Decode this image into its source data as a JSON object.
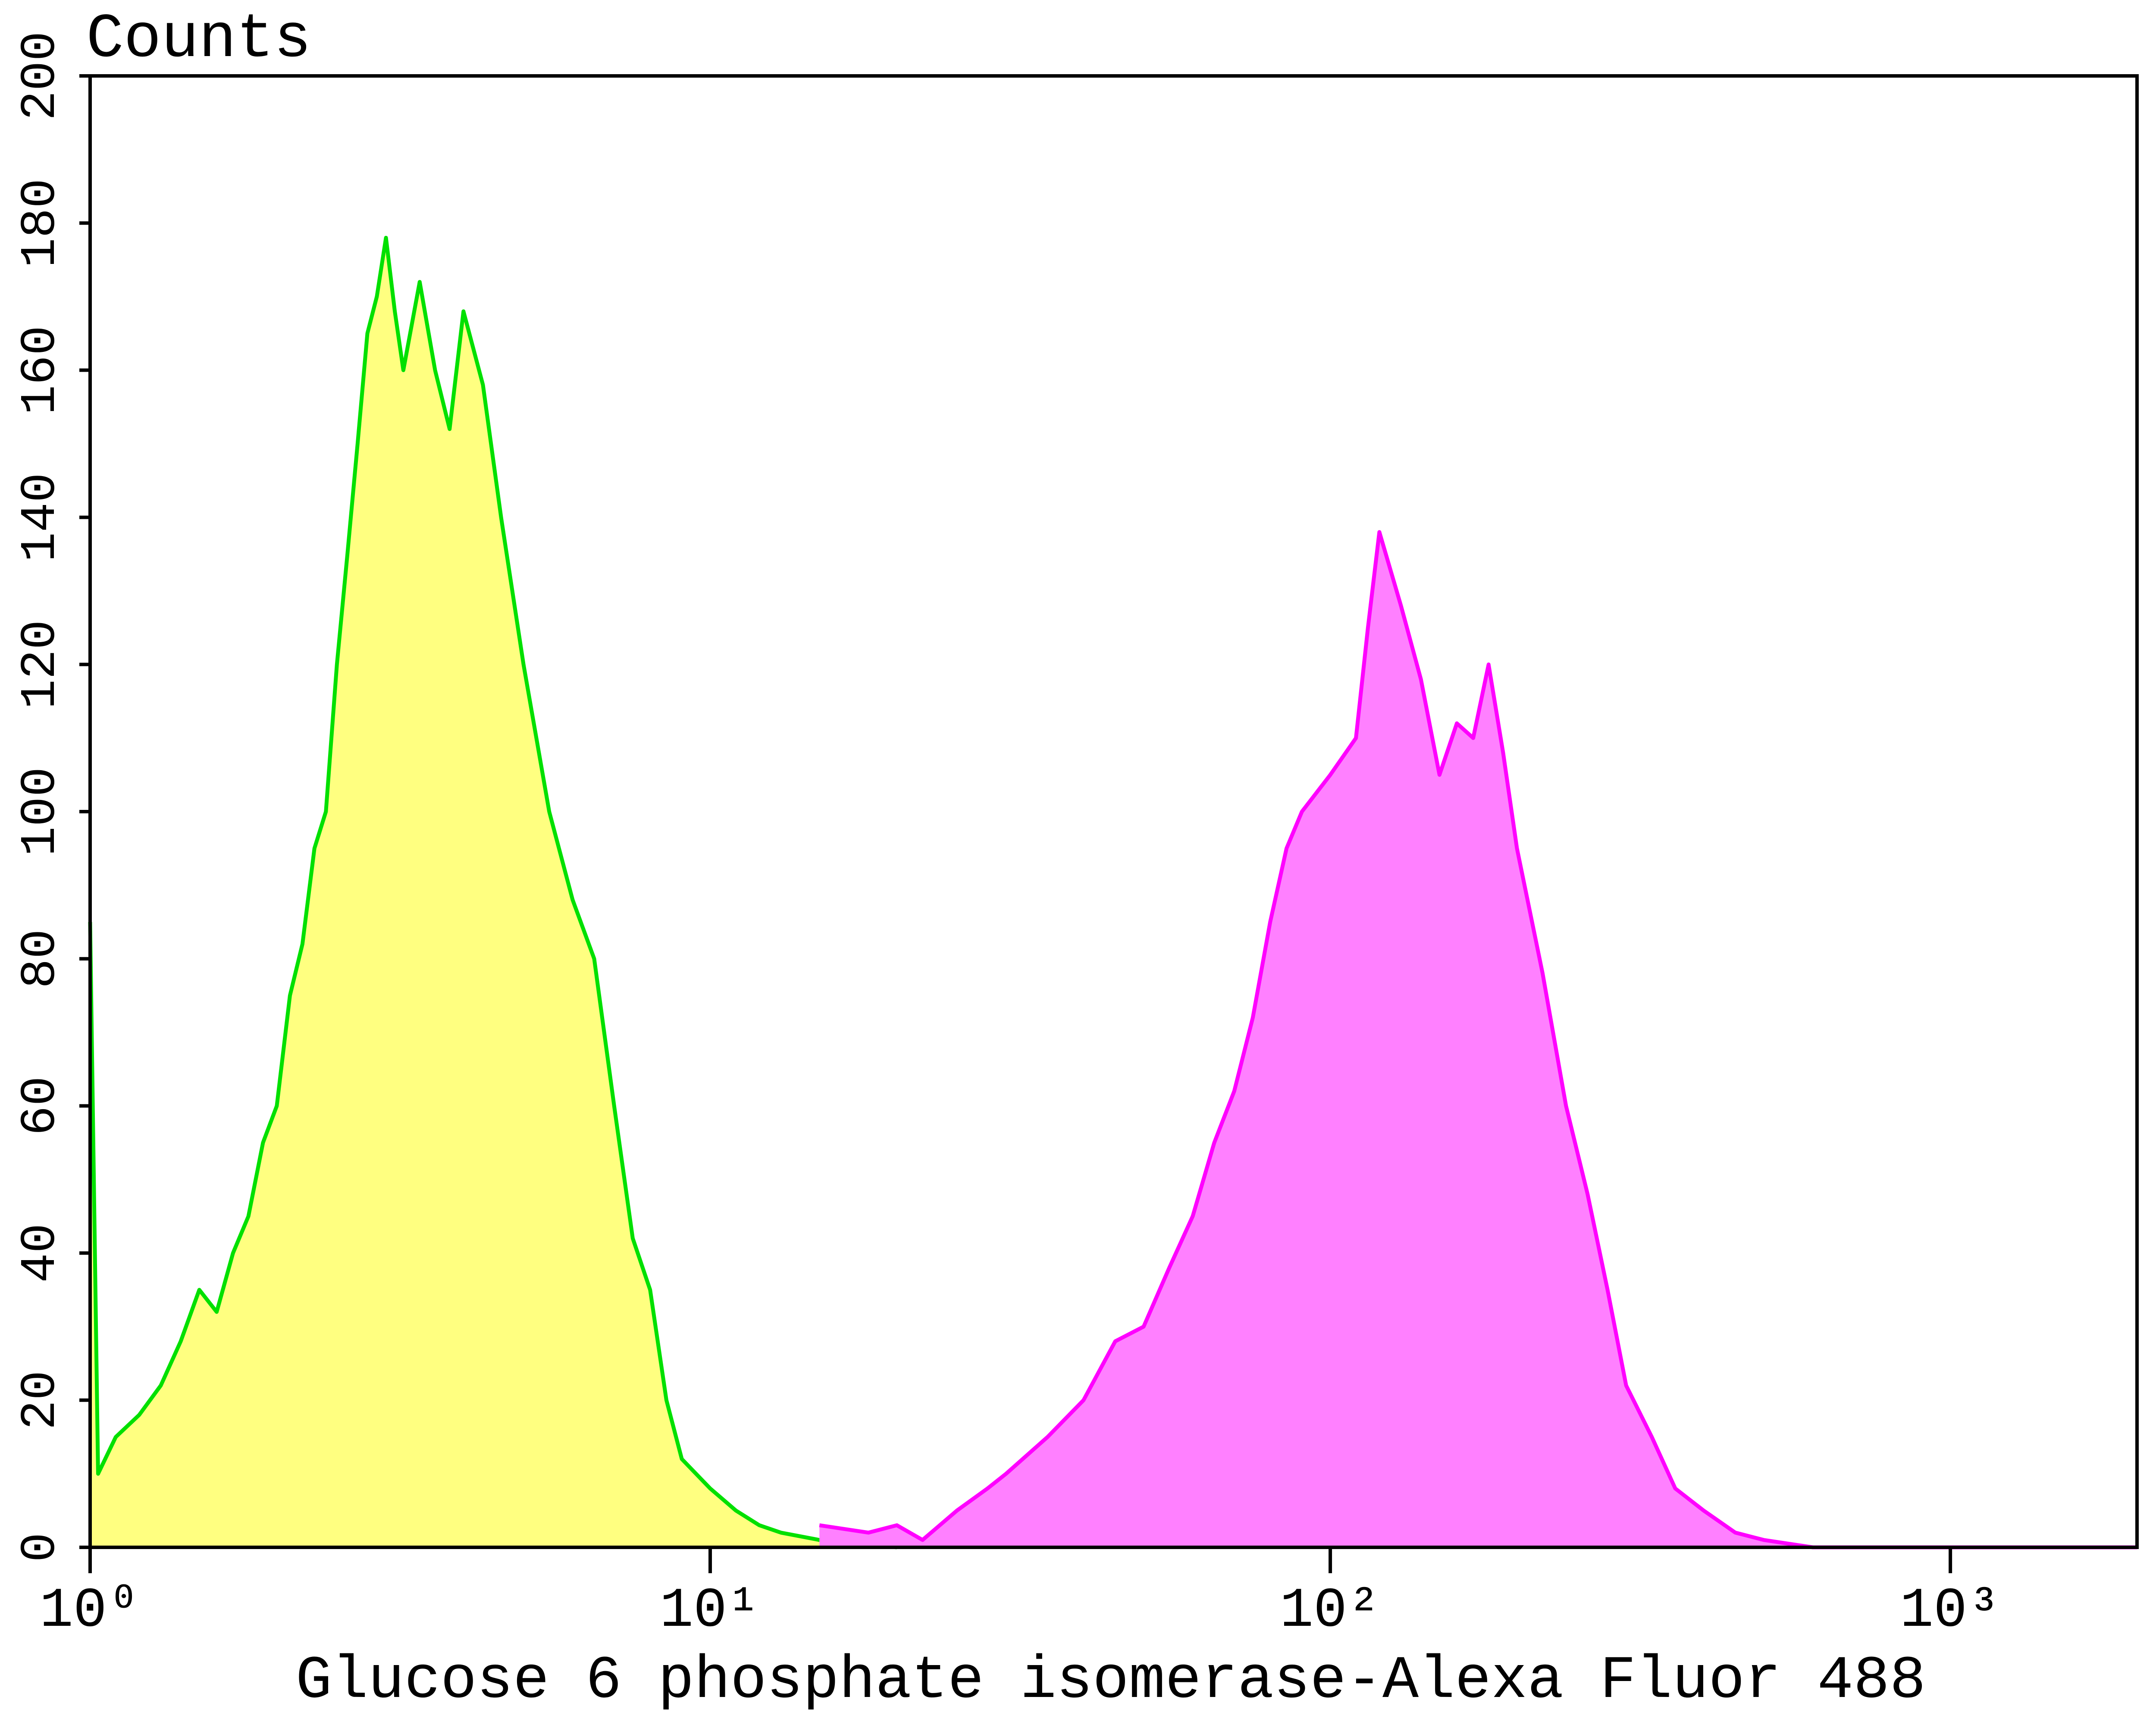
{
  "chart_data": {
    "type": "area",
    "title": "Counts",
    "x_label": "Glucose 6 phosphate isomerase-Alexa Fluor 488",
    "x_scale": "log",
    "xlim": [
      1,
      2000
    ],
    "ylim": [
      0,
      200
    ],
    "xticks": [
      {
        "value": 1,
        "label": "10⁰"
      },
      {
        "value": 10,
        "label": "10¹"
      },
      {
        "value": 100,
        "label": "10²"
      },
      {
        "value": 1000,
        "label": "10³"
      }
    ],
    "yticks": [
      0,
      20,
      40,
      60,
      80,
      100,
      120,
      140,
      160,
      180,
      200
    ],
    "series": [
      {
        "color": "#00e000",
        "fill": "#ffff80",
        "x": [
          1.0,
          1.03,
          1.1,
          1.2,
          1.3,
          1.4,
          1.5,
          1.6,
          1.7,
          1.8,
          1.9,
          2.0,
          2.1,
          2.2,
          2.3,
          2.4,
          2.5,
          2.6,
          2.7,
          2.8,
          2.9,
          3.0,
          3.1,
          3.2,
          3.4,
          3.6,
          3.8,
          4.0,
          4.3,
          4.6,
          5.0,
          5.5,
          6.0,
          6.5,
          7.0,
          7.5,
          8.0,
          8.5,
          9.0,
          10,
          11,
          12,
          13,
          15,
          20
        ],
        "values": [
          85,
          10,
          15,
          18,
          22,
          28,
          35,
          32,
          40,
          45,
          55,
          60,
          75,
          82,
          95,
          100,
          120,
          135,
          150,
          165,
          170,
          178,
          168,
          160,
          172,
          160,
          152,
          168,
          158,
          140,
          120,
          100,
          88,
          80,
          60,
          42,
          35,
          20,
          12,
          8,
          5,
          3,
          2,
          1,
          0
        ]
      },
      {
        "color": "#ff00ff",
        "fill": "#ff80ff",
        "x": [
          15,
          18,
          20,
          22,
          25,
          28,
          30,
          35,
          40,
          45,
          50,
          55,
          60,
          65,
          70,
          75,
          80,
          85,
          90,
          100,
          110,
          115,
          120,
          130,
          140,
          150,
          160,
          170,
          180,
          190,
          200,
          220,
          240,
          260,
          280,
          300,
          330,
          360,
          400,
          450,
          500,
          600,
          800,
          2000
        ],
        "values": [
          3,
          2,
          3,
          1,
          5,
          8,
          10,
          15,
          20,
          28,
          30,
          38,
          45,
          55,
          62,
          72,
          85,
          95,
          100,
          105,
          110,
          125,
          138,
          128,
          118,
          105,
          112,
          110,
          120,
          108,
          95,
          78,
          60,
          48,
          35,
          22,
          15,
          8,
          5,
          2,
          1,
          0,
          0,
          0
        ]
      }
    ]
  }
}
